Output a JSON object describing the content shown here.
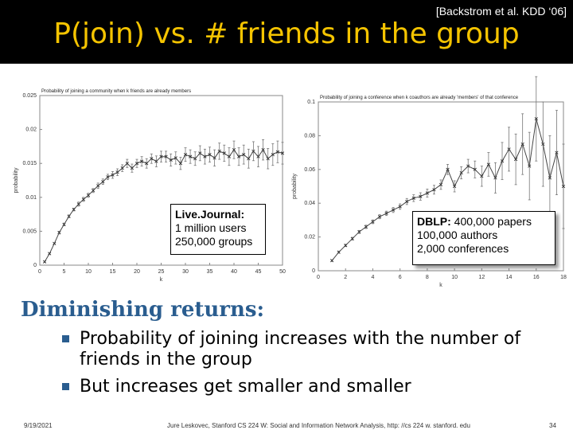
{
  "header": {
    "citation": "[Backstrom et al. KDD ‘06]",
    "title": "P(join) vs. # friends in the group"
  },
  "chart_data": [
    {
      "type": "line",
      "title": "Probability of joining a community when k friends are already members",
      "xlabel": "k",
      "ylabel": "probability",
      "xlim": [
        0,
        50
      ],
      "ylim": [
        0,
        0.025
      ],
      "xticks": [
        "0",
        "5",
        "10",
        "15",
        "20",
        "25",
        "30",
        "35",
        "40",
        "45",
        "50"
      ],
      "yticks": [
        "0",
        "0.005",
        "0.01",
        "0.015",
        "0.02",
        "0.025"
      ],
      "grid": false,
      "error_bars": true,
      "series": [
        {
          "x": [
            1,
            2,
            3,
            4,
            5,
            6,
            7,
            8,
            9,
            10,
            11,
            12,
            13,
            14,
            15,
            16,
            17,
            18,
            19,
            20,
            21,
            22,
            23,
            24,
            25,
            26,
            27,
            28,
            29,
            30,
            31,
            32,
            33,
            34,
            35,
            36,
            37,
            38,
            39,
            40,
            41,
            42,
            43,
            44,
            45,
            46,
            47,
            48,
            49,
            50
          ],
          "y": [
            0.0005,
            0.0017,
            0.0032,
            0.0048,
            0.006,
            0.0072,
            0.0082,
            0.009,
            0.0097,
            0.0103,
            0.011,
            0.0117,
            0.0123,
            0.013,
            0.0133,
            0.0137,
            0.0143,
            0.015,
            0.0143,
            0.015,
            0.0153,
            0.015,
            0.0157,
            0.0153,
            0.016,
            0.016,
            0.0155,
            0.0158,
            0.015,
            0.0163,
            0.016,
            0.0157,
            0.0165,
            0.016,
            0.0163,
            0.0158,
            0.0168,
            0.0165,
            0.016,
            0.017,
            0.016,
            0.0163,
            0.0157,
            0.0168,
            0.016,
            0.017,
            0.0157,
            0.0163,
            0.0167,
            0.0165
          ],
          "err": [
            0.0001,
            0.0001,
            0.0001,
            0.0002,
            0.0002,
            0.0002,
            0.0002,
            0.0003,
            0.0003,
            0.0003,
            0.0003,
            0.0004,
            0.0004,
            0.0004,
            0.0005,
            0.0005,
            0.0005,
            0.0006,
            0.0006,
            0.0006,
            0.0007,
            0.0007,
            0.0007,
            0.0008,
            0.0008,
            0.0008,
            0.0009,
            0.0009,
            0.0009,
            0.001,
            0.001,
            0.001,
            0.0011,
            0.0011,
            0.0011,
            0.0012,
            0.0012,
            0.0012,
            0.0013,
            0.0013,
            0.0013,
            0.0014,
            0.0014,
            0.0014,
            0.0015,
            0.0015,
            0.0015,
            0.0016,
            0.0016,
            0.0016
          ]
        }
      ]
    },
    {
      "type": "line",
      "title": "Probability of joining a conference when k coauthors are already 'members' of that conference",
      "xlabel": "k",
      "ylabel": "probability",
      "xlim": [
        0,
        18
      ],
      "ylim": [
        0,
        0.1
      ],
      "xticks": [
        "0",
        "2",
        "4",
        "6",
        "8",
        "10",
        "12",
        "14",
        "16",
        "18"
      ],
      "yticks": [
        "0",
        "0.02",
        "0.04",
        "0.06",
        "0.08",
        "0.1"
      ],
      "grid": false,
      "error_bars": true,
      "series": [
        {
          "x": [
            1,
            1.5,
            2,
            2.5,
            3,
            3.5,
            4,
            4.5,
            5,
            5.5,
            6,
            6.5,
            7,
            7.5,
            8,
            8.5,
            9,
            9.5,
            10,
            10.5,
            11,
            11.5,
            12,
            12.5,
            13,
            13.5,
            14,
            14.5,
            15,
            15.5,
            16,
            16.5,
            17,
            17.5,
            18
          ],
          "y": [
            0.006,
            0.011,
            0.015,
            0.019,
            0.023,
            0.026,
            0.029,
            0.032,
            0.034,
            0.036,
            0.038,
            0.041,
            0.043,
            0.044,
            0.046,
            0.048,
            0.051,
            0.06,
            0.05,
            0.058,
            0.062,
            0.06,
            0.056,
            0.063,
            0.055,
            0.065,
            0.072,
            0.066,
            0.075,
            0.062,
            0.09,
            0.075,
            0.055,
            0.07,
            0.05
          ],
          "err": [
            0.0005,
            0.0006,
            0.0007,
            0.0008,
            0.0009,
            0.001,
            0.0011,
            0.0012,
            0.0013,
            0.0015,
            0.0016,
            0.0018,
            0.002,
            0.0022,
            0.0024,
            0.0026,
            0.0028,
            0.003,
            0.0033,
            0.0036,
            0.004,
            0.005,
            0.006,
            0.007,
            0.009,
            0.011,
            0.013,
            0.015,
            0.018,
            0.02,
            0.025,
            0.025,
            0.025,
            0.025,
            0.025
          ]
        }
      ]
    }
  ],
  "callouts": {
    "livejournal": {
      "heading": "Live.Journal:",
      "line1": "1 million users",
      "line2": "250,000 groups"
    },
    "dblp": {
      "heading": "DBLP:",
      "line1": " 400,000 papers",
      "line2": "100,000 authors",
      "line3": "2,000 conferences"
    }
  },
  "section": {
    "marker": "",
    "heading": "Diminishing returns:"
  },
  "bullets": [
    "Probability of joining increases with the number of friends in the group",
    "But increases get smaller and smaller"
  ],
  "footer": {
    "date": "9/19/2021",
    "text": "Jure Leskovec, Stanford CS 224 W: Social and Information Network Analysis, http: //cs 224 w. stanford. edu",
    "page": "34"
  },
  "colors": {
    "title_background": "#000000",
    "title_text": "#f5c400",
    "accent_blue": "#2a5d8f",
    "plot_line": "#444444"
  }
}
